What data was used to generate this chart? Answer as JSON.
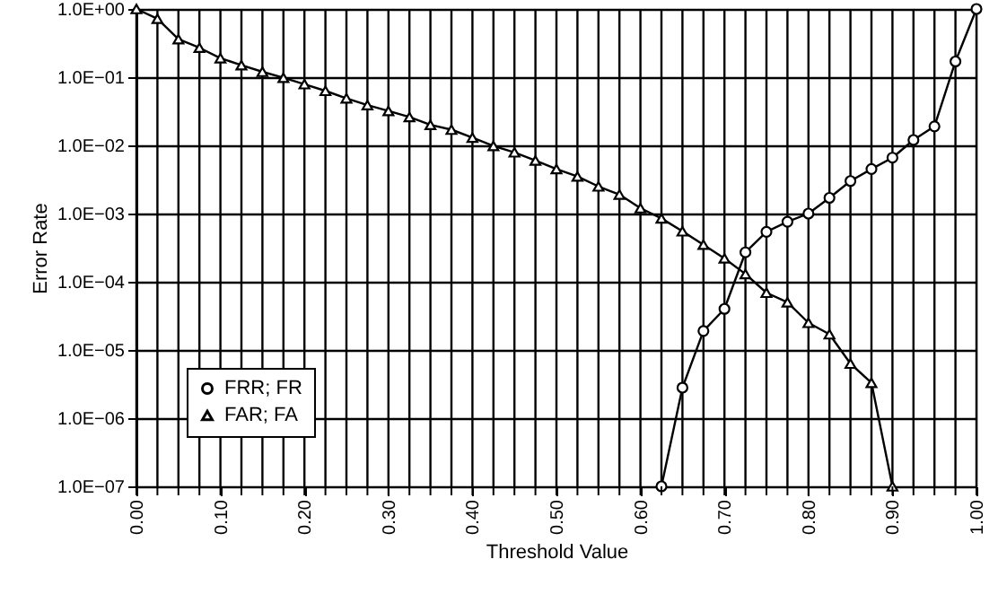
{
  "chart_data": {
    "type": "line",
    "xlabel": "Threshold Value",
    "ylabel": "Error Rate",
    "log": "y",
    "grid": true,
    "legend": "bottom left",
    "x": [
      0,
      0.025,
      0.05,
      0.075,
      0.1,
      0.125,
      0.15,
      0.175,
      0.2,
      0.225,
      0.25,
      0.275,
      0.3,
      0.325,
      0.35,
      0.375,
      0.4,
      0.425,
      0.45,
      0.475,
      0.5,
      0.525,
      0.55,
      0.575,
      0.6,
      0.625,
      0.65,
      0.675,
      0.7,
      0.725,
      0.75,
      0.775,
      0.8,
      0.825,
      0.85,
      0.875,
      0.9,
      0.925,
      0.95,
      0.975,
      1
    ],
    "xlim": [
      0,
      1
    ],
    "xticks": [
      {
        "value": 0,
        "label": "0.00"
      },
      {
        "value": 0.025,
        "label": null
      },
      {
        "value": 0.05,
        "label": null
      },
      {
        "value": 0.075,
        "label": null
      },
      {
        "value": 0.1,
        "label": "0.10"
      },
      {
        "value": 0.125,
        "label": null
      },
      {
        "value": 0.15,
        "label": null
      },
      {
        "value": 0.175,
        "label": null
      },
      {
        "value": 0.2,
        "label": "0.20"
      },
      {
        "value": 0.225,
        "label": null
      },
      {
        "value": 0.25,
        "label": null
      },
      {
        "value": 0.275,
        "label": null
      },
      {
        "value": 0.3,
        "label": "0.30"
      },
      {
        "value": 0.325,
        "label": null
      },
      {
        "value": 0.35,
        "label": null
      },
      {
        "value": 0.375,
        "label": null
      },
      {
        "value": 0.4,
        "label": "0.40"
      },
      {
        "value": 0.425,
        "label": null
      },
      {
        "value": 0.45,
        "label": null
      },
      {
        "value": 0.475,
        "label": null
      },
      {
        "value": 0.5,
        "label": "0.50"
      },
      {
        "value": 0.525,
        "label": null
      },
      {
        "value": 0.55,
        "label": null
      },
      {
        "value": 0.575,
        "label": null
      },
      {
        "value": 0.6,
        "label": "0.60"
      },
      {
        "value": 0.625,
        "label": null
      },
      {
        "value": 0.65,
        "label": null
      },
      {
        "value": 0.675,
        "label": null
      },
      {
        "value": 0.7,
        "label": "0.70"
      },
      {
        "value": 0.725,
        "label": null
      },
      {
        "value": 0.75,
        "label": null
      },
      {
        "value": 0.775,
        "label": null
      },
      {
        "value": 0.8,
        "label": "0.80"
      },
      {
        "value": 0.825,
        "label": null
      },
      {
        "value": 0.85,
        "label": null
      },
      {
        "value": 0.875,
        "label": null
      },
      {
        "value": 0.9,
        "label": "0.90"
      },
      {
        "value": 0.925,
        "label": null
      },
      {
        "value": 0.95,
        "label": null
      },
      {
        "value": 0.975,
        "label": null
      },
      {
        "value": 1,
        "label": "1.00"
      }
    ],
    "ylim": [
      1e-07,
      1
    ],
    "yticks": [
      {
        "value": 1e-07,
        "label": "1.0E−07"
      },
      {
        "value": 1e-06,
        "label": "1.0E−06"
      },
      {
        "value": 1e-05,
        "label": "1.0E−05"
      },
      {
        "value": 0.0001,
        "label": "1.0E−04"
      },
      {
        "value": 0.001,
        "label": "1.0E−03"
      },
      {
        "value": 0.01,
        "label": "1.0E−02"
      },
      {
        "value": 0.1,
        "label": "1.0E−01"
      },
      {
        "value": 1,
        "label": "1.0E+00"
      }
    ],
    "series": [
      {
        "name": "FRR; FR",
        "color": "#000000",
        "marker": "circle",
        "values": [
          null,
          null,
          null,
          null,
          null,
          null,
          null,
          null,
          null,
          null,
          null,
          null,
          null,
          null,
          null,
          null,
          null,
          null,
          null,
          null,
          null,
          null,
          null,
          null,
          null,
          1e-07,
          2.8e-06,
          1.9e-05,
          4e-05,
          0.00027,
          0.00054,
          0.00076,
          0.001,
          0.0017,
          0.003,
          0.0045,
          0.0066,
          0.012,
          0.019,
          0.17,
          1
        ]
      },
      {
        "name": "FAR; FA",
        "color": "#000000",
        "marker": "triangle",
        "values": [
          1,
          0.72,
          0.36,
          0.27,
          0.19,
          0.15,
          0.12,
          0.098,
          0.079,
          0.063,
          0.049,
          0.039,
          0.032,
          0.026,
          0.02,
          0.017,
          0.013,
          0.0098,
          0.0079,
          0.006,
          0.0045,
          0.0035,
          0.0025,
          0.0019,
          0.0012,
          0.00085,
          0.00055,
          0.00035,
          0.00022,
          0.00013,
          6.9e-05,
          5e-05,
          2.5e-05,
          1.7e-05,
          6.3e-06,
          3.3e-06,
          1e-07,
          null,
          null,
          null,
          null
        ]
      }
    ]
  }
}
